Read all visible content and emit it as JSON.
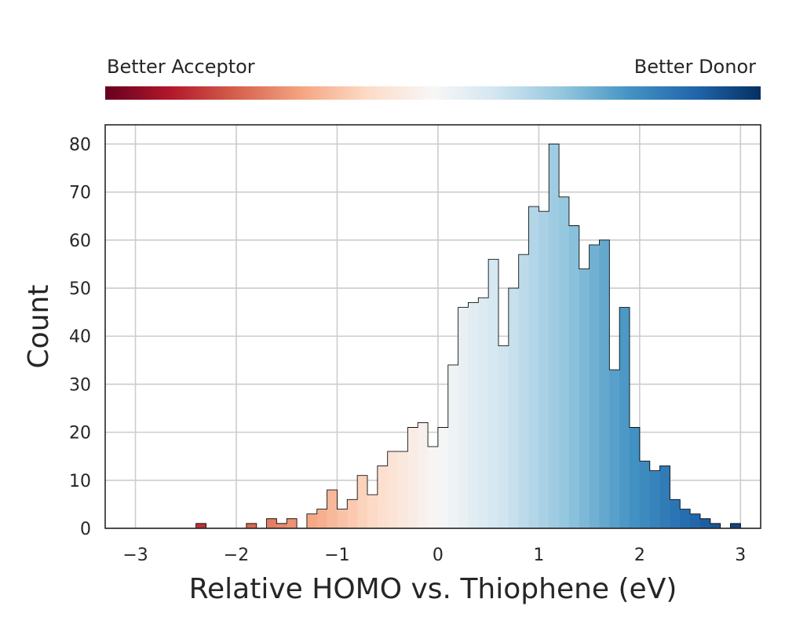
{
  "chart_data": {
    "type": "bar",
    "subtype": "histogram-step",
    "xlabel": "Relative HOMO vs. Thiophene (eV)",
    "ylabel": "Count",
    "xlim": [
      -3.3,
      3.2
    ],
    "ylim": [
      0,
      84
    ],
    "x_ticks": [
      -3,
      -2,
      -1,
      0,
      1,
      2,
      3
    ],
    "x_tick_labels": [
      "−3",
      "−2",
      "−1",
      "0",
      "1",
      "2",
      "3"
    ],
    "y_ticks": [
      0,
      10,
      20,
      30,
      40,
      50,
      60,
      70,
      80
    ],
    "y_tick_labels": [
      "0",
      "10",
      "20",
      "30",
      "40",
      "50",
      "60",
      "70",
      "80"
    ],
    "grid": true,
    "colormap": "RdBu",
    "colormap_range": [
      -3.2,
      3.2
    ],
    "colorbar": {
      "left_label": "Better Acceptor",
      "right_label": "Better Donor",
      "placement": "top"
    },
    "bin_start": -2.4,
    "bin_width": 0.1,
    "values": [
      1,
      0,
      0,
      0,
      0,
      1,
      0,
      2,
      1,
      2,
      0,
      3,
      4,
      8,
      4,
      6,
      11,
      7,
      13,
      16,
      16,
      21,
      22,
      17,
      21,
      34,
      46,
      47,
      48,
      56,
      38,
      50,
      57,
      67,
      66,
      80,
      69,
      63,
      54,
      59,
      60,
      33,
      46,
      21,
      14,
      12,
      13,
      6,
      4,
      3,
      2,
      1,
      0,
      1
    ],
    "colors": {
      "edge": "#111111",
      "grid": "#cccccc",
      "axes": "#262626"
    }
  }
}
